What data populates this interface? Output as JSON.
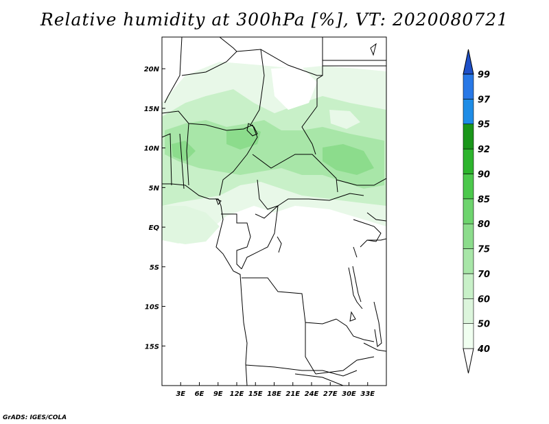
{
  "title": "Relative humidity at 300hPa [%], VT: 2020080721",
  "credit": "GrADS: IGES/COLA",
  "map": {
    "region": "Central and West Africa",
    "lon_range": [
      0,
      36
    ],
    "lat_range": [
      -20,
      24
    ],
    "x_ticks": [
      "3E",
      "6E",
      "9E",
      "12E",
      "15E",
      "18E",
      "21E",
      "24E",
      "27E",
      "30E",
      "33E"
    ],
    "x_tick_values": [
      3,
      6,
      9,
      12,
      15,
      18,
      21,
      24,
      27,
      30,
      33
    ],
    "y_ticks": [
      "20N",
      "15N",
      "10N",
      "5N",
      "EQ",
      "5S",
      "10S",
      "15S"
    ],
    "y_tick_values": [
      20,
      15,
      10,
      5,
      0,
      -5,
      -10,
      -15
    ]
  },
  "colorbar": {
    "levels": [
      "40",
      "50",
      "60",
      "70",
      "75",
      "80",
      "85",
      "90",
      "92",
      "95",
      "97",
      "99"
    ],
    "colors": [
      "#f0fff0",
      "#dcf5dc",
      "#c8f0c8",
      "#a8e6a8",
      "#8cdc8c",
      "#6ed46e",
      "#4cc84c",
      "#2db42d",
      "#1a961a",
      "#1e8ce6",
      "#2878e6",
      "#1e50c8"
    ],
    "under_color": "#ffffff",
    "over_color": "#1e50c8"
  }
}
